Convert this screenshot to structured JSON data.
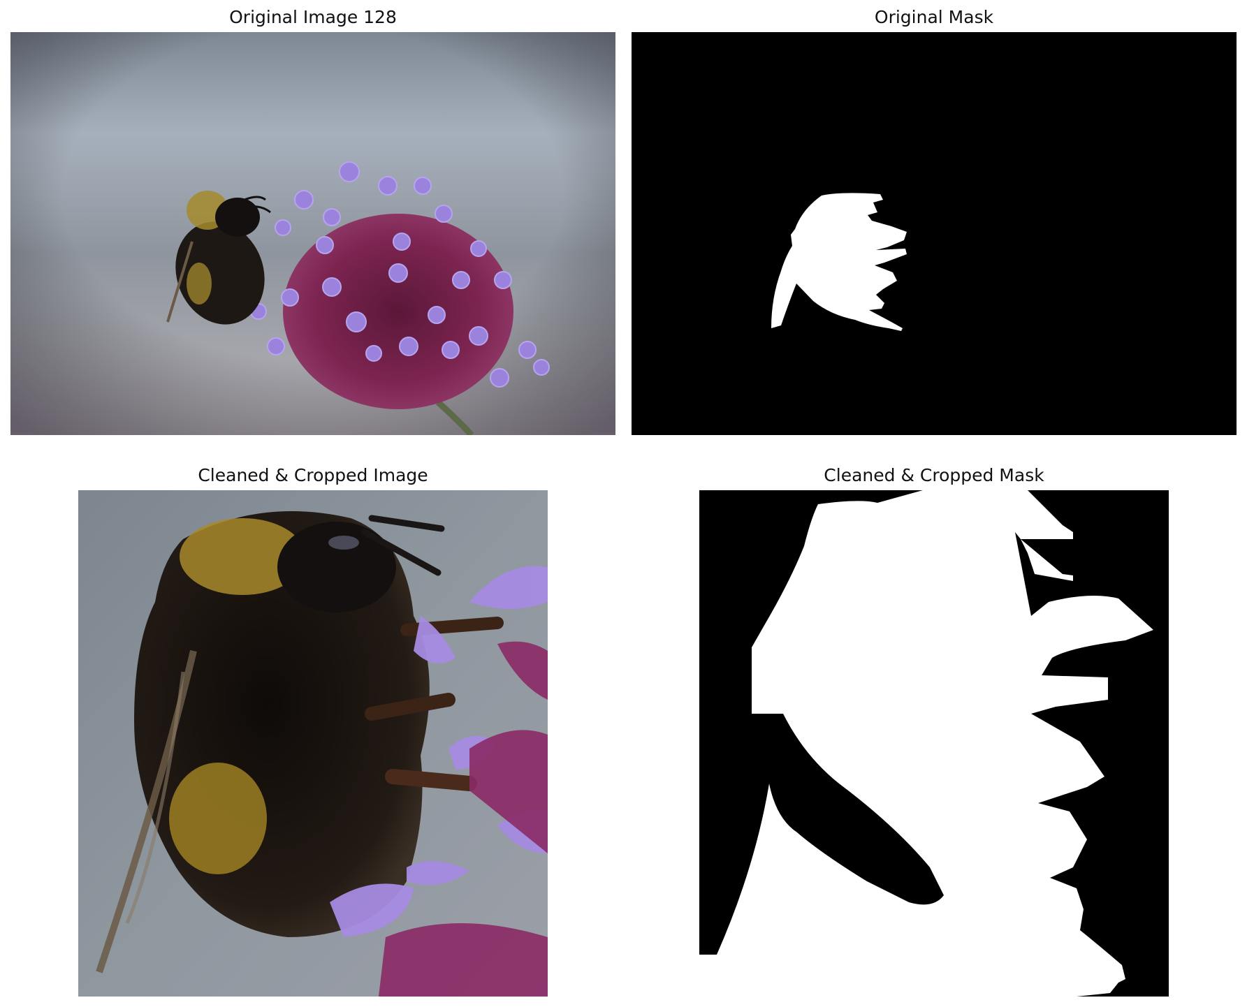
{
  "panels": [
    {
      "title": "Original Image 128",
      "kind": "photo",
      "subject": "bumblebee-on-verbena"
    },
    {
      "title": "Original Mask",
      "kind": "mask"
    },
    {
      "title": "Cleaned & Cropped Image",
      "kind": "photo",
      "subject": "bumblebee-closeup"
    },
    {
      "title": "Cleaned & Cropped Mask",
      "kind": "mask"
    }
  ],
  "colors": {
    "mask_foreground": "#ffffff",
    "mask_background": "#000000",
    "background_blur": "#8e98a4",
    "flower_purple": "#9a7ee0",
    "flower_magenta": "#7a1f58",
    "bee_yellow": "#b8962a",
    "bee_body": "#1c1612"
  }
}
